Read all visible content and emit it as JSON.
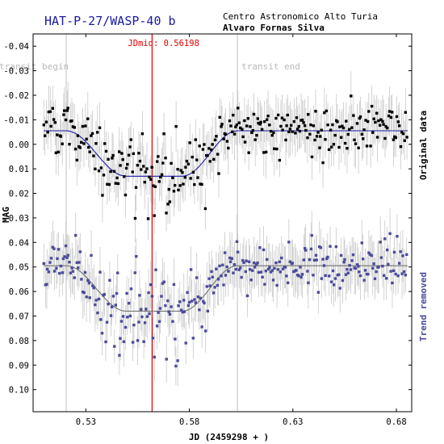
{
  "header": {
    "title": "HAT-P-27/WASP-40 b",
    "observatory": "Centro Astronomico Alto Turia",
    "observer": "Alvaro Fornas Silva"
  },
  "chart_data": {
    "type": "scatter",
    "xlabel": "JD (2459298 + )",
    "ylabel": "MAG",
    "xlim": [
      0.5045,
      0.6874
    ],
    "ylim": [
      -0.045,
      0.109
    ],
    "y_inverted": true,
    "x_ticks": [
      0.53,
      0.58,
      0.63,
      0.68
    ],
    "x_tick_labels": [
      "0.53",
      "0.58",
      "0.63",
      "0.68"
    ],
    "y_ticks": [
      -0.04,
      -0.03,
      -0.02,
      -0.01,
      0.0,
      0.01,
      0.02,
      0.03,
      0.04,
      0.05,
      0.06,
      0.07,
      0.08,
      0.09,
      0.1
    ],
    "y_tick_labels": [
      "-0.04",
      "-0.03",
      "-0.02",
      "-0.01",
      "0.00",
      "0.01",
      "0.02",
      "0.03",
      "0.04",
      "0.05",
      "0.06",
      "0.07",
      "0.08",
      "0.09",
      "0.10"
    ],
    "markers": {
      "jdmid": {
        "x": 0.56198,
        "label": "JDmid: 0.56198",
        "color": "#e00000"
      },
      "transit_begin": {
        "x": 0.5205,
        "label": "transit begin"
      },
      "transit_end": {
        "x": 0.6032,
        "label": "transit end"
      }
    },
    "series": [
      {
        "name": "Original data",
        "color": "#000000",
        "model_color": "#1a1aa6",
        "baseline": -0.0055,
        "depth": 0.0185,
        "start": 0.5096,
        "end": 0.6854,
        "noise": 0.0065,
        "errbar": 0.0085,
        "seed": 11
      },
      {
        "name": "Trend removed",
        "color": "#4b4b9a",
        "model_color": "#707070",
        "baseline": 0.0495,
        "depth": 0.0185,
        "start": 0.5096,
        "end": 0.6854,
        "noise": 0.0065,
        "errbar": 0.0085,
        "seed": 29
      }
    ],
    "model": {
      "ingress_start": 0.5205,
      "flat_start": 0.5495,
      "flat_end": 0.5765,
      "egress_end": 0.6032
    },
    "grid": false
  },
  "colors": {
    "frame": "#000000",
    "axis_tick": "#555555",
    "error_bars": "#c8c8c8",
    "transit_lines": "#c0c0c0",
    "transit_labels": "#b8b8b8"
  }
}
